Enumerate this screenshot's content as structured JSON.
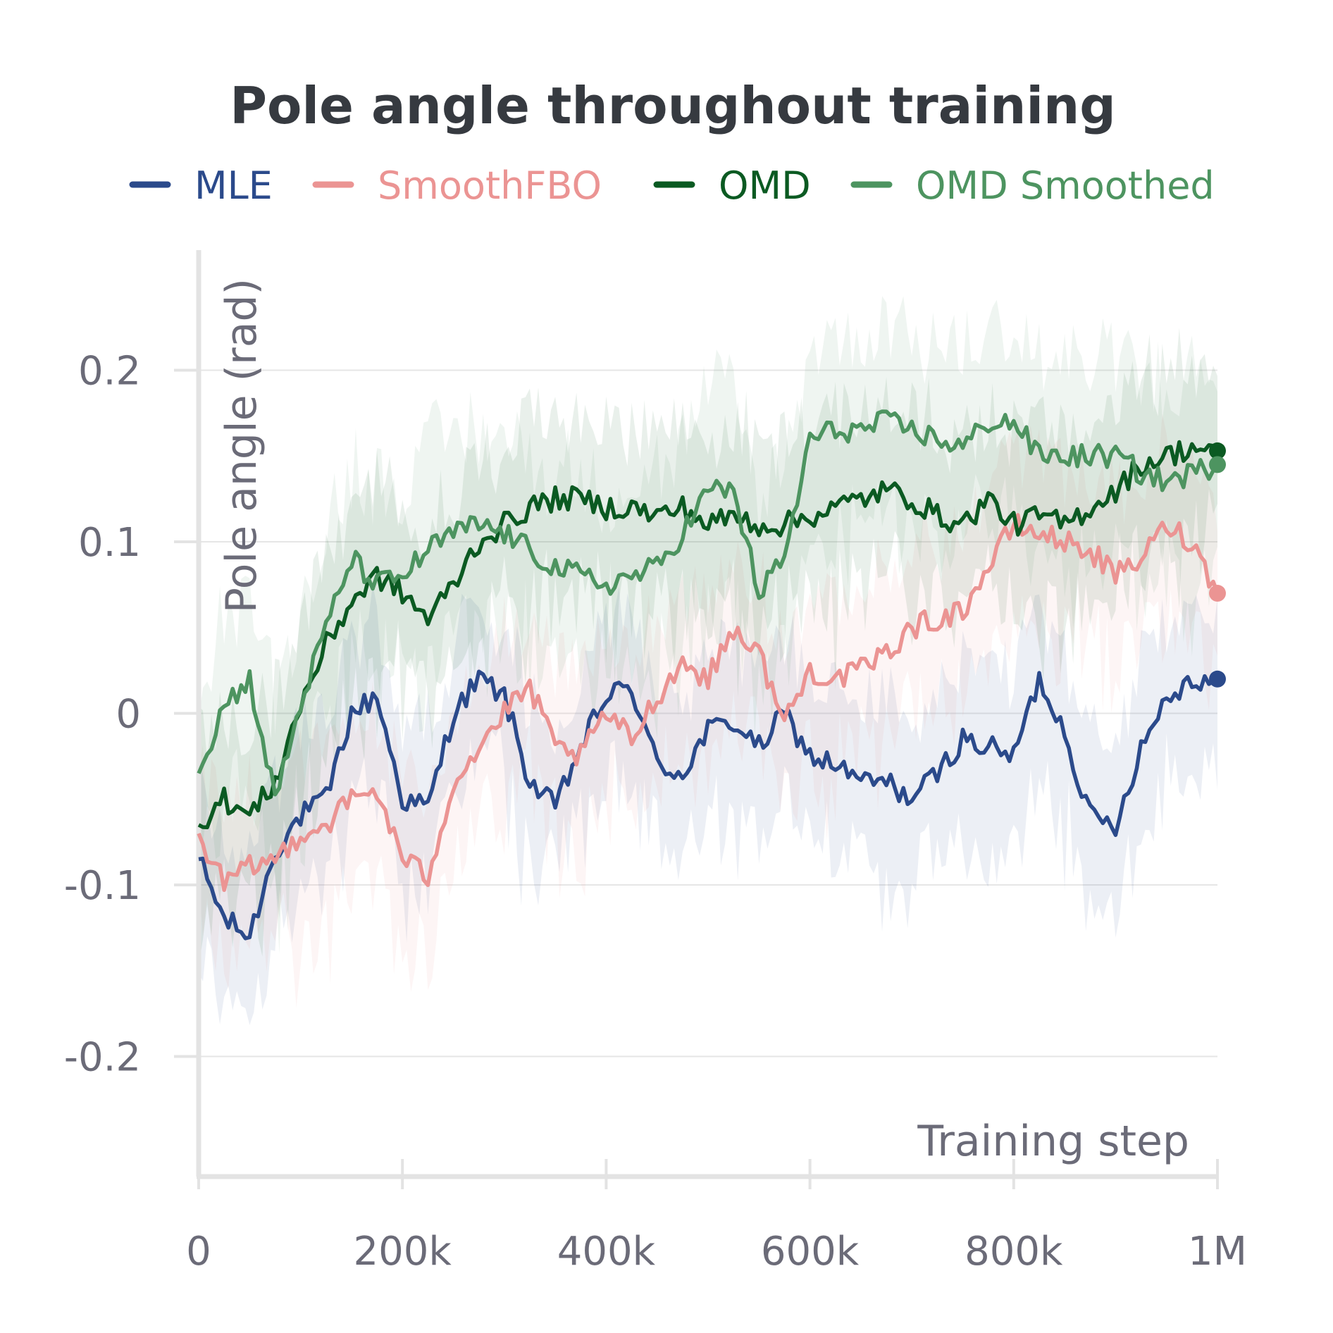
{
  "chart_data": {
    "type": "line",
    "title": "Pole angle throughout training",
    "xlabel": "Training step",
    "ylabel": "Pole angle (rad)",
    "xlim": [
      0,
      1000000
    ],
    "ylim": [
      -0.27,
      0.27
    ],
    "x_ticks": [
      {
        "value": 0,
        "label": "0"
      },
      {
        "value": 200000,
        "label": "200k"
      },
      {
        "value": 400000,
        "label": "400k"
      },
      {
        "value": 600000,
        "label": "600k"
      },
      {
        "value": 800000,
        "label": "800k"
      },
      {
        "value": 1000000,
        "label": "1M"
      }
    ],
    "y_ticks": [
      {
        "value": 0.2,
        "label": "0.2"
      },
      {
        "value": 0.1,
        "label": "0.1"
      },
      {
        "value": 0,
        "label": "0"
      },
      {
        "value": -0.1,
        "label": "-0.1"
      },
      {
        "value": -0.2,
        "label": "-0.2"
      }
    ],
    "grid": true,
    "legend_position": "top",
    "x": [
      0,
      25000,
      50000,
      75000,
      100000,
      125000,
      150000,
      175000,
      200000,
      225000,
      250000,
      275000,
      300000,
      325000,
      350000,
      375000,
      400000,
      425000,
      450000,
      475000,
      500000,
      525000,
      550000,
      575000,
      600000,
      625000,
      650000,
      675000,
      700000,
      725000,
      750000,
      775000,
      800000,
      825000,
      850000,
      875000,
      900000,
      925000,
      950000,
      975000,
      1000000
    ],
    "series": [
      {
        "name": "MLE",
        "color": "#2b4a8b",
        "band_spread": 0.045,
        "values": [
          -0.085,
          -0.12,
          -0.13,
          -0.08,
          -0.06,
          -0.05,
          0.0,
          0.01,
          -0.05,
          -0.055,
          0.0,
          0.02,
          0.01,
          -0.04,
          -0.055,
          -0.02,
          0.01,
          0.015,
          -0.03,
          -0.035,
          -0.01,
          -0.005,
          -0.02,
          0.0,
          -0.025,
          -0.03,
          -0.04,
          -0.04,
          -0.05,
          -0.035,
          -0.015,
          -0.02,
          -0.025,
          0.02,
          -0.01,
          -0.06,
          -0.065,
          -0.02,
          0.01,
          0.02,
          0.02
        ]
      },
      {
        "name": "SmoothFBO",
        "color": "#eb9493",
        "band_spread": 0.045,
        "values": [
          -0.07,
          -0.1,
          -0.09,
          -0.085,
          -0.07,
          -0.065,
          -0.05,
          -0.045,
          -0.085,
          -0.095,
          -0.04,
          -0.02,
          0.0,
          0.015,
          -0.02,
          -0.025,
          0.0,
          -0.015,
          0.01,
          0.03,
          0.02,
          0.05,
          0.035,
          -0.005,
          0.025,
          0.02,
          0.025,
          0.035,
          0.05,
          0.055,
          0.06,
          0.085,
          0.11,
          0.105,
          0.1,
          0.095,
          0.08,
          0.09,
          0.11,
          0.1,
          0.07
        ]
      },
      {
        "name": "OMD",
        "color": "#0b5a22",
        "band_spread": 0.05,
        "values": [
          -0.065,
          -0.05,
          -0.06,
          -0.04,
          0.005,
          0.04,
          0.065,
          0.08,
          0.07,
          0.055,
          0.075,
          0.1,
          0.11,
          0.12,
          0.125,
          0.125,
          0.12,
          0.12,
          0.115,
          0.12,
          0.11,
          0.115,
          0.11,
          0.11,
          0.115,
          0.12,
          0.125,
          0.13,
          0.125,
          0.115,
          0.11,
          0.125,
          0.11,
          0.115,
          0.11,
          0.12,
          0.13,
          0.145,
          0.15,
          0.155,
          0.153
        ]
      },
      {
        "name": "OMD Smoothed",
        "color": "#4d9460",
        "band_spread": 0.055,
        "values": [
          -0.035,
          0.005,
          0.02,
          -0.05,
          0.005,
          0.05,
          0.09,
          0.075,
          0.08,
          0.095,
          0.105,
          0.11,
          0.105,
          0.095,
          0.085,
          0.08,
          0.075,
          0.08,
          0.085,
          0.105,
          0.13,
          0.13,
          0.07,
          0.09,
          0.16,
          0.165,
          0.165,
          0.17,
          0.165,
          0.16,
          0.155,
          0.17,
          0.17,
          0.15,
          0.15,
          0.15,
          0.15,
          0.14,
          0.135,
          0.14,
          0.145
        ]
      }
    ]
  }
}
